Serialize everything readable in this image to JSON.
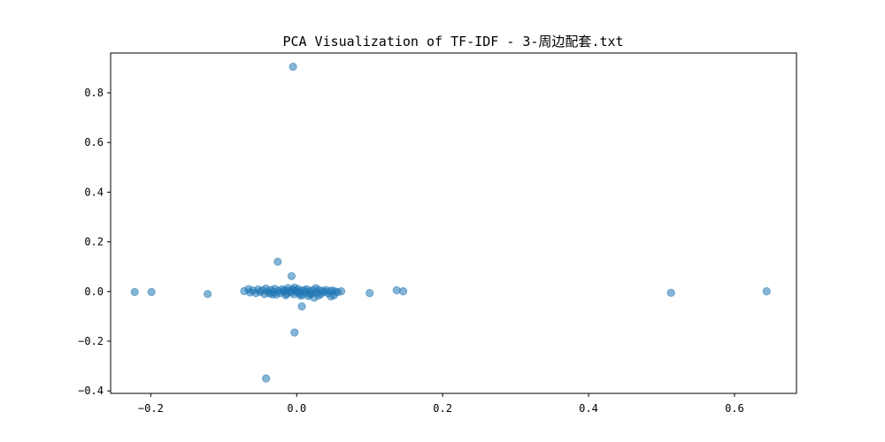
{
  "chart_data": {
    "type": "scatter",
    "title": "PCA Visualization of TF-IDF - 3-周边配套.txt",
    "xlabel": "",
    "ylabel": "",
    "xlim": [
      -0.255,
      0.685
    ],
    "ylim": [
      -0.41,
      0.96
    ],
    "grid": false,
    "point_color": "#1f77b4",
    "point_alpha": 0.55,
    "x_ticks": [
      {
        "value": -0.2,
        "label": "−0.2"
      },
      {
        "value": 0.0,
        "label": "0.0"
      },
      {
        "value": 0.2,
        "label": "0.2"
      },
      {
        "value": 0.4,
        "label": "0.4"
      },
      {
        "value": 0.6,
        "label": "0.6"
      }
    ],
    "y_ticks": [
      {
        "value": -0.4,
        "label": "−0.4"
      },
      {
        "value": -0.2,
        "label": "−0.2"
      },
      {
        "value": 0.0,
        "label": "0.0"
      },
      {
        "value": 0.2,
        "label": "0.2"
      },
      {
        "value": 0.4,
        "label": "0.4"
      },
      {
        "value": 0.6,
        "label": "0.6"
      },
      {
        "value": 0.8,
        "label": "0.8"
      }
    ],
    "points": [
      {
        "x": -0.005,
        "y": 0.905
      },
      {
        "x": -0.026,
        "y": 0.12
      },
      {
        "x": -0.007,
        "y": 0.062
      },
      {
        "x": 0.007,
        "y": -0.06
      },
      {
        "x": -0.003,
        "y": -0.165
      },
      {
        "x": -0.042,
        "y": -0.35
      },
      {
        "x": -0.222,
        "y": -0.002
      },
      {
        "x": -0.199,
        "y": -0.002
      },
      {
        "x": -0.122,
        "y": -0.01
      },
      {
        "x": 0.1,
        "y": -0.006
      },
      {
        "x": 0.137,
        "y": 0.005
      },
      {
        "x": 0.146,
        "y": 0.001
      },
      {
        "x": 0.513,
        "y": -0.005
      },
      {
        "x": 0.644,
        "y": 0.001
      },
      {
        "x": -0.072,
        "y": 0.002
      },
      {
        "x": -0.066,
        "y": 0.01
      },
      {
        "x": -0.064,
        "y": -0.004
      },
      {
        "x": -0.06,
        "y": 0.004
      },
      {
        "x": -0.056,
        "y": -0.006
      },
      {
        "x": -0.053,
        "y": 0.008
      },
      {
        "x": -0.05,
        "y": -0.002
      },
      {
        "x": -0.047,
        "y": 0.005
      },
      {
        "x": -0.044,
        "y": -0.01
      },
      {
        "x": -0.042,
        "y": 0.012
      },
      {
        "x": -0.04,
        "y": 0.0
      },
      {
        "x": -0.037,
        "y": -0.008
      },
      {
        "x": -0.035,
        "y": 0.006
      },
      {
        "x": -0.032,
        "y": -0.003
      },
      {
        "x": -0.03,
        "y": 0.011
      },
      {
        "x": -0.028,
        "y": -0.012
      },
      {
        "x": -0.025,
        "y": 0.003
      },
      {
        "x": -0.023,
        "y": -0.006
      },
      {
        "x": -0.02,
        "y": 0.009
      },
      {
        "x": -0.018,
        "y": -0.001
      },
      {
        "x": -0.016,
        "y": 0.005
      },
      {
        "x": -0.014,
        "y": -0.009
      },
      {
        "x": -0.012,
        "y": 0.014
      },
      {
        "x": -0.01,
        "y": 0.002
      },
      {
        "x": -0.008,
        "y": -0.004
      },
      {
        "x": -0.006,
        "y": 0.008
      },
      {
        "x": -0.004,
        "y": -0.011
      },
      {
        "x": -0.002,
        "y": 0.004
      },
      {
        "x": 0.0,
        "y": -0.002
      },
      {
        "x": 0.002,
        "y": 0.01
      },
      {
        "x": 0.004,
        "y": -0.007
      },
      {
        "x": 0.006,
        "y": 0.003
      },
      {
        "x": 0.008,
        "y": -0.014
      },
      {
        "x": 0.01,
        "y": 0.006
      },
      {
        "x": 0.012,
        "y": -0.003
      },
      {
        "x": 0.014,
        "y": 0.009
      },
      {
        "x": 0.016,
        "y": -0.018
      },
      {
        "x": 0.018,
        "y": 0.001
      },
      {
        "x": 0.02,
        "y": -0.008
      },
      {
        "x": 0.022,
        "y": 0.005
      },
      {
        "x": 0.024,
        "y": -0.025
      },
      {
        "x": 0.026,
        "y": 0.014
      },
      {
        "x": 0.028,
        "y": -0.004
      },
      {
        "x": 0.03,
        "y": 0.007
      },
      {
        "x": 0.033,
        "y": -0.01
      },
      {
        "x": 0.035,
        "y": 0.003
      },
      {
        "x": 0.038,
        "y": -0.002
      },
      {
        "x": 0.04,
        "y": 0.006
      },
      {
        "x": 0.043,
        "y": -0.007
      },
      {
        "x": 0.045,
        "y": 0.002
      },
      {
        "x": 0.047,
        "y": -0.02
      },
      {
        "x": 0.049,
        "y": 0.004
      },
      {
        "x": 0.051,
        "y": -0.015
      },
      {
        "x": 0.053,
        "y": 0.0
      },
      {
        "x": 0.056,
        "y": -0.003
      },
      {
        "x": 0.061,
        "y": 0.001
      },
      {
        "x": -0.015,
        "y": -0.015
      },
      {
        "x": 0.005,
        "y": -0.016
      },
      {
        "x": -0.033,
        "y": -0.012
      },
      {
        "x": 0.018,
        "y": -0.012
      },
      {
        "x": -0.003,
        "y": 0.016
      },
      {
        "x": 0.03,
        "y": -0.016
      }
    ]
  }
}
